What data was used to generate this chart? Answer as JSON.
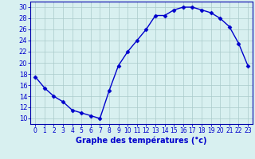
{
  "hours": [
    0,
    1,
    2,
    3,
    4,
    5,
    6,
    7,
    8,
    9,
    10,
    11,
    12,
    13,
    14,
    15,
    16,
    17,
    18,
    19,
    20,
    21,
    22,
    23
  ],
  "temperatures": [
    17.5,
    15.5,
    14.0,
    13.0,
    11.5,
    11.0,
    10.5,
    10.0,
    15.0,
    19.5,
    22.0,
    24.0,
    26.0,
    28.5,
    28.5,
    29.5,
    30.0,
    30.0,
    29.5,
    29.0,
    28.0,
    26.5,
    23.5,
    19.5
  ],
  "line_color": "#0000cc",
  "marker": "D",
  "marker_size": 2.5,
  "bg_color": "#d8f0f0",
  "grid_color": "#aacaca",
  "xlabel": "Graphe des températures (°c)",
  "xlabel_color": "#0000cc",
  "xlim": [
    -0.5,
    23.5
  ],
  "ylim": [
    9,
    31
  ],
  "yticks": [
    10,
    12,
    14,
    16,
    18,
    20,
    22,
    24,
    26,
    28,
    30
  ],
  "xticks": [
    0,
    1,
    2,
    3,
    4,
    5,
    6,
    7,
    8,
    9,
    10,
    11,
    12,
    13,
    14,
    15,
    16,
    17,
    18,
    19,
    20,
    21,
    22,
    23
  ],
  "tick_color": "#0000cc",
  "spine_color": "#0000aa",
  "tick_fontsize": 5.5,
  "ylabel_fontsize": 6,
  "xlabel_fontsize": 7
}
